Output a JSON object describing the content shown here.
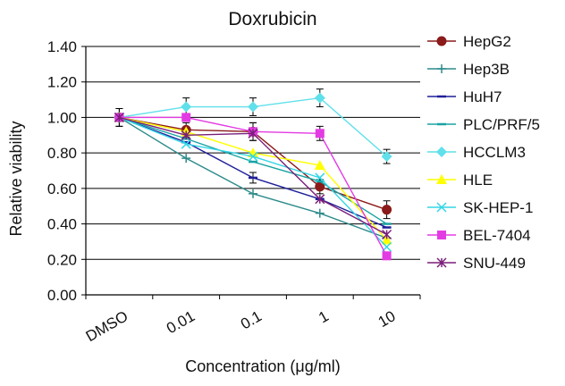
{
  "chart_data": {
    "type": "line",
    "title": "Doxrubicin",
    "xlabel": "Concentration (μg/ml)",
    "ylabel": "Relative viability",
    "categories": [
      "DMSO",
      "0.01",
      "0.1",
      "1",
      "10"
    ],
    "ylim": [
      0,
      1.4
    ],
    "yticks": [
      "0.00",
      "0.20",
      "0.40",
      "0.60",
      "0.80",
      "1.00",
      "1.20",
      "1.40"
    ],
    "grid": true,
    "legend_position": "right",
    "series": [
      {
        "name": "HepG2",
        "color": "#8b1a1a",
        "marker": "circle",
        "values": [
          1.0,
          0.93,
          0.92,
          0.61,
          0.48
        ],
        "errors": [
          0.05,
          0.04,
          0.05,
          0.04,
          0.05
        ]
      },
      {
        "name": "Hep3B",
        "color": "#2e8b8b",
        "marker": "plus",
        "values": [
          1.0,
          0.77,
          0.57,
          0.46,
          0.32
        ],
        "errors": [
          0.0,
          0.0,
          0.0,
          0.0,
          0.0
        ]
      },
      {
        "name": "HuH7",
        "color": "#1f1f9a",
        "marker": "dash",
        "values": [
          1.0,
          0.86,
          0.66,
          0.54,
          0.38
        ],
        "errors": [
          0.0,
          0.0,
          0.03,
          0.0,
          0.0
        ]
      },
      {
        "name": "PLC/PRF/5",
        "color": "#1aa3a3",
        "marker": "dash",
        "values": [
          1.0,
          0.88,
          0.75,
          0.64,
          0.4
        ],
        "errors": [
          0.0,
          0.0,
          0.0,
          0.0,
          0.0
        ]
      },
      {
        "name": "HCCLM3",
        "color": "#5fe0ea",
        "marker": "diamond",
        "values": [
          1.0,
          1.06,
          1.06,
          1.11,
          0.78
        ],
        "errors": [
          0.05,
          0.05,
          0.05,
          0.05,
          0.04
        ]
      },
      {
        "name": "HLE",
        "color": "#ffff00",
        "marker": "triangle",
        "values": [
          1.0,
          0.92,
          0.8,
          0.73,
          0.31
        ],
        "errors": [
          0.0,
          0.0,
          0.0,
          0.0,
          0.0
        ]
      },
      {
        "name": "SK-HEP-1",
        "color": "#33d6e6",
        "marker": "x",
        "values": [
          1.0,
          0.85,
          0.78,
          0.66,
          0.27
        ],
        "errors": [
          0.0,
          0.0,
          0.0,
          0.0,
          0.0
        ]
      },
      {
        "name": "BEL-7404",
        "color": "#e33be3",
        "marker": "square",
        "values": [
          1.0,
          1.0,
          0.92,
          0.91,
          0.22
        ],
        "errors": [
          0.0,
          0.0,
          0.05,
          0.04,
          0.0
        ]
      },
      {
        "name": "SNU-449",
        "color": "#7a1f7a",
        "marker": "asterisk",
        "values": [
          1.0,
          0.9,
          0.91,
          0.54,
          0.34
        ],
        "errors": [
          0.0,
          0.0,
          0.0,
          0.0,
          0.0
        ]
      }
    ]
  }
}
